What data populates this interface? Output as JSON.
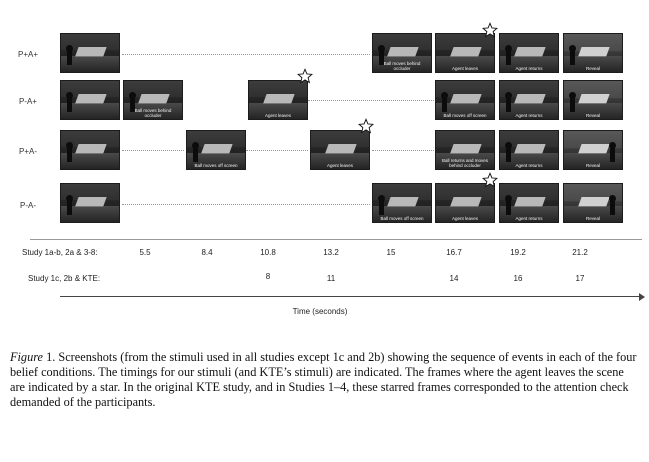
{
  "conditions": [
    {
      "label": "P+A+",
      "frames": [
        {
          "caption": ""
        },
        {
          "caption": "Ball moves behind occluder"
        },
        {
          "caption": "Agent leaves"
        },
        {
          "caption": "Agent returns"
        },
        {
          "caption": "Reveal"
        }
      ]
    },
    {
      "label": "P-A+",
      "frames": [
        {
          "caption": ""
        },
        {
          "caption": "Ball moves behind occluder"
        },
        {
          "caption": "Agent leaves"
        },
        {
          "caption": "Ball moves off screen"
        },
        {
          "caption": "Agent returns"
        },
        {
          "caption": "Reveal"
        }
      ]
    },
    {
      "label": "P+A-",
      "frames": [
        {
          "caption": ""
        },
        {
          "caption": "Ball moves off screen"
        },
        {
          "caption": "Agent leaves"
        },
        {
          "caption": "Ball returns and moves behind occluder"
        },
        {
          "caption": "Agent returns"
        },
        {
          "caption": "Reveal"
        }
      ]
    },
    {
      "label": "P-A-",
      "frames": [
        {
          "caption": ""
        },
        {
          "caption": "Ball moves off screen"
        },
        {
          "caption": "Agent leaves"
        },
        {
          "caption": "Agent returns"
        },
        {
          "caption": "Reveal"
        }
      ]
    }
  ],
  "timeline": {
    "row1_label": "Study 1a-b, 2a & 3-8:",
    "row1_ticks": [
      "5.5",
      "8.4",
      "10.8",
      "13.2",
      "15",
      "16.7",
      "19.2",
      "21.2"
    ],
    "row2_label": "Study 1c, 2b & KTE:",
    "row2_ticks": [
      "8",
      "11",
      "14",
      "16",
      "17"
    ],
    "axis_title": "Time (seconds)"
  },
  "caption": {
    "figure_label": "Figure",
    "text": " 1. Screenshots (from the stimuli used in all studies except 1c and 2b) showing the sequence of events in each of the four belief conditions. The timings for our stimuli (and KTE’s stimuli) are indicated. The frames where the agent leaves the scene are indicated by a star. In the original KTE study, and in Studies 1–4, these starred frames corresponded to the attention check demanded of the participants."
  },
  "icons": {
    "star": "star-icon"
  },
  "colors": {
    "frame_dark": "#262626",
    "occluder": "#b8b8b8",
    "text": "#111111"
  }
}
